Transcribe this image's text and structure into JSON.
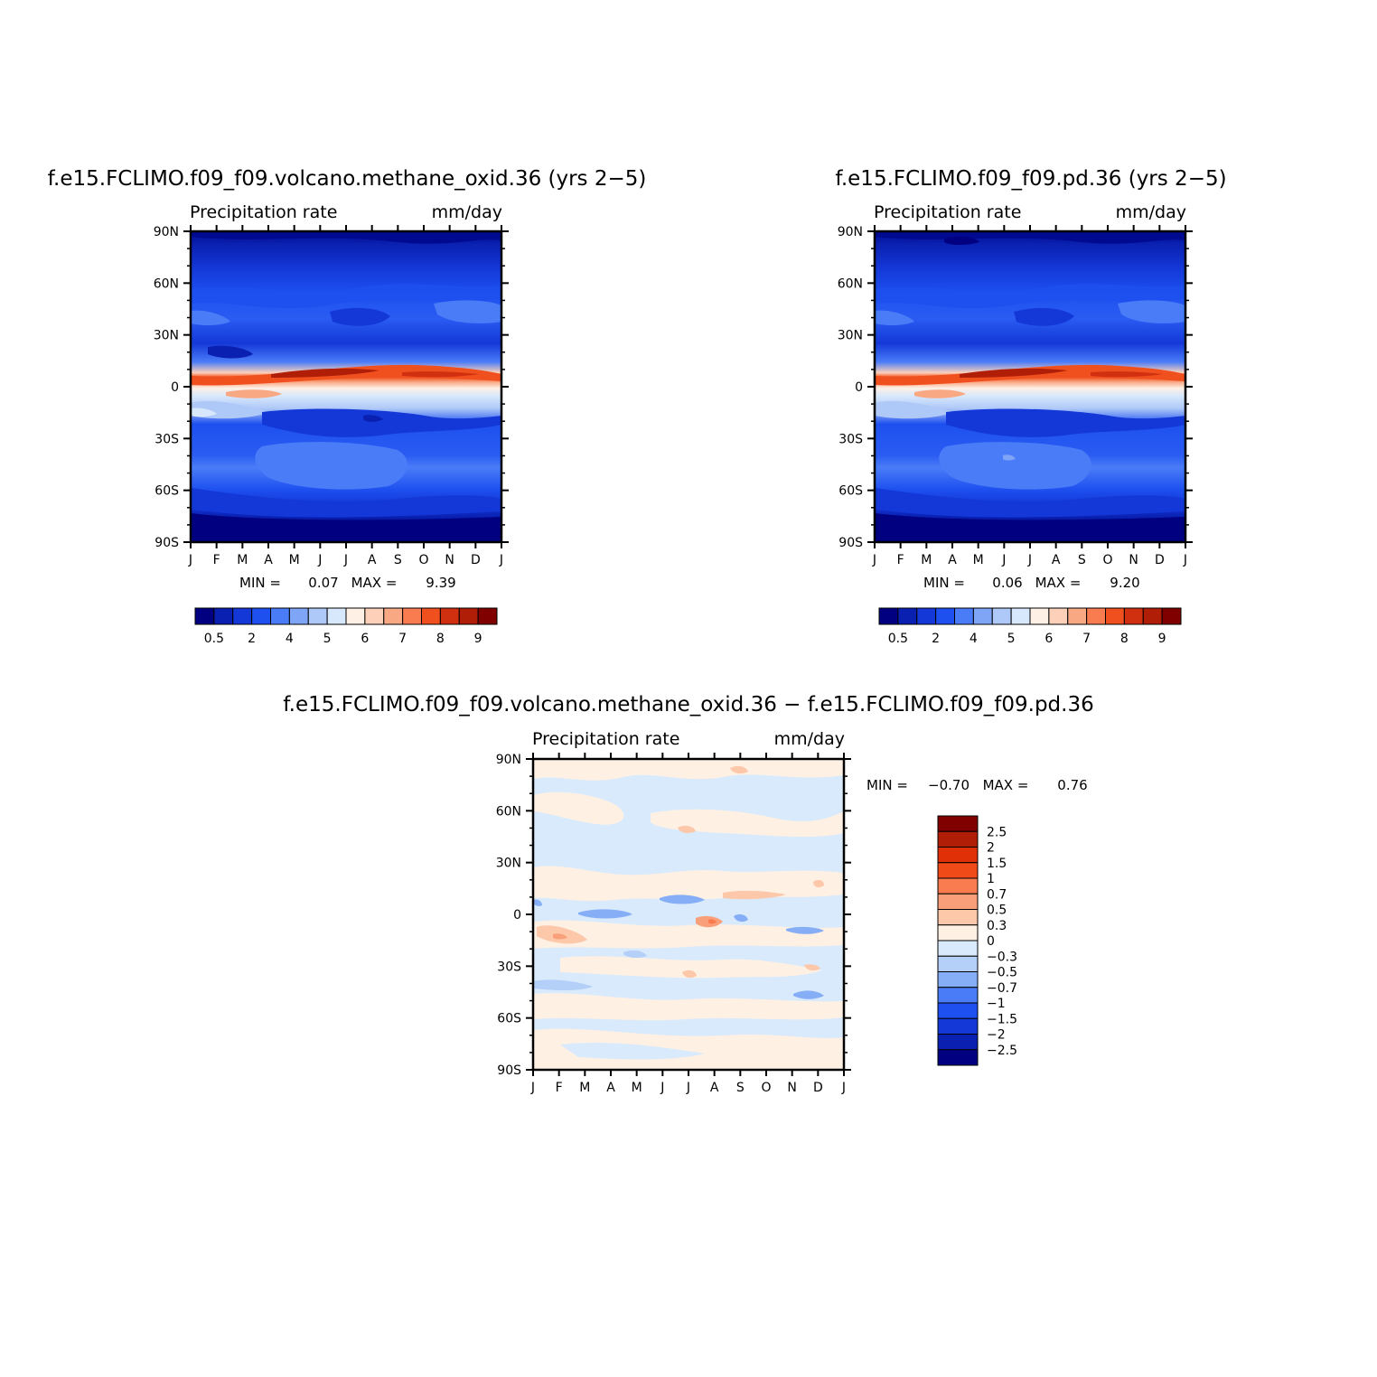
{
  "chart_data": [
    {
      "type": "heatmap",
      "title": "f.e15.FCLIMO.f09_f09.volcano.methane_oxid.36 (yrs 2−5)",
      "subtitle_left": "Precipitation rate",
      "subtitle_right": "mm/day",
      "x": [
        "J",
        "F",
        "M",
        "A",
        "M",
        "J",
        "J",
        "A",
        "S",
        "O",
        "N",
        "D",
        "J"
      ],
      "y_ticks": [
        "90N",
        "60N",
        "30N",
        "0",
        "30S",
        "60S",
        "90S"
      ],
      "ylim": [
        -90,
        90
      ],
      "min_label": "MIN =",
      "min_value": "0.07",
      "max_label": "MAX =",
      "max_value": "9.39",
      "colorbar_labels": [
        "0.5",
        "2",
        "4",
        "5",
        "6",
        "7",
        "8",
        "9"
      ],
      "colorbar_colors": [
        "#000080",
        "#0a20b0",
        "#1438d8",
        "#1e50f0",
        "#4a7cf8",
        "#7ea5f6",
        "#aec8f8",
        "#d8e8fc",
        "#fff0e6",
        "#fdd0ba",
        "#f9a884",
        "#f87c50",
        "#f0501e",
        "#d03010",
        "#b01e08",
        "#800000"
      ]
    },
    {
      "type": "heatmap",
      "title": "f.e15.FCLIMO.f09_f09.pd.36 (yrs 2−5)",
      "subtitle_left": "Precipitation rate",
      "subtitle_right": "mm/day",
      "x": [
        "J",
        "F",
        "M",
        "A",
        "M",
        "J",
        "J",
        "A",
        "S",
        "O",
        "N",
        "D",
        "J"
      ],
      "y_ticks": [
        "90N",
        "60N",
        "30N",
        "0",
        "30S",
        "60S",
        "90S"
      ],
      "ylim": [
        -90,
        90
      ],
      "min_label": "MIN =",
      "min_value": "0.06",
      "max_label": "MAX =",
      "max_value": "9.20",
      "colorbar_labels": [
        "0.5",
        "2",
        "4",
        "5",
        "6",
        "7",
        "8",
        "9"
      ],
      "colorbar_colors": [
        "#000080",
        "#0a20b0",
        "#1438d8",
        "#1e50f0",
        "#4a7cf8",
        "#7ea5f6",
        "#aec8f8",
        "#d8e8fc",
        "#fff0e6",
        "#fdd0ba",
        "#f9a884",
        "#f87c50",
        "#f0501e",
        "#d03010",
        "#b01e08",
        "#800000"
      ]
    },
    {
      "type": "heatmap",
      "title": "f.e15.FCLIMO.f09_f09.volcano.methane_oxid.36 − f.e15.FCLIMO.f09_f09.pd.36",
      "subtitle_left": "Precipitation rate",
      "subtitle_right": "mm/day",
      "x": [
        "J",
        "F",
        "M",
        "A",
        "M",
        "J",
        "J",
        "A",
        "S",
        "O",
        "N",
        "D",
        "J"
      ],
      "y_ticks": [
        "90N",
        "60N",
        "30N",
        "0",
        "30S",
        "60S",
        "90S"
      ],
      "ylim": [
        -90,
        90
      ],
      "min_label": "MIN =",
      "min_value": "−0.70",
      "max_label": "MAX =",
      "max_value": "0.76",
      "colorbar_labels": [
        "2.5",
        "2",
        "1.5",
        "1",
        "0.7",
        "0.5",
        "0.3",
        "0",
        "−0.3",
        "−0.5",
        "−0.7",
        "−1",
        "−1.5",
        "−2",
        "−2.5"
      ],
      "colorbar_colors": [
        "#800000",
        "#b01e08",
        "#e03008",
        "#f04a18",
        "#f87c50",
        "#f9a07a",
        "#fdc8aa",
        "#fff0e4",
        "#d8eafc",
        "#b4d0f8",
        "#86aef6",
        "#4a7cf8",
        "#1e50f0",
        "#1438d8",
        "#0a20b0",
        "#000080"
      ]
    }
  ]
}
